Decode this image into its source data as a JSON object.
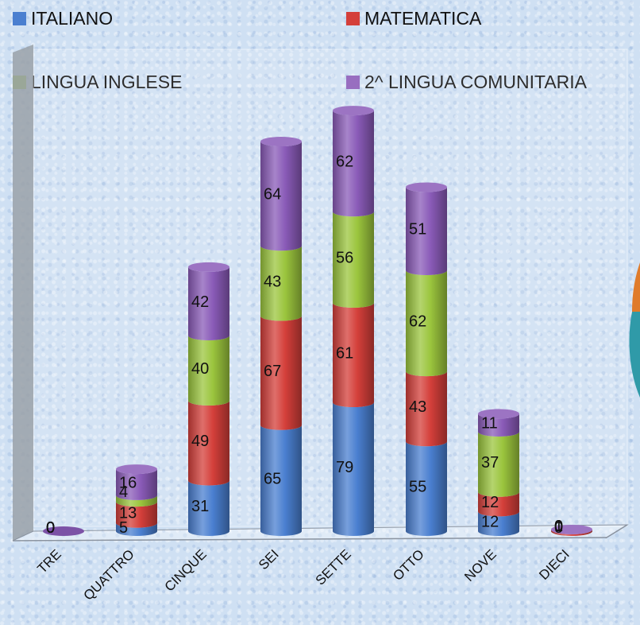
{
  "chart_data": {
    "type": "bar",
    "stacked": true,
    "style": "3d-cylinder",
    "categories": [
      "TRE",
      "QUATTRO",
      "CINQUE",
      "SEI",
      "SETTE",
      "OTTO",
      "NOVE",
      "DIECI"
    ],
    "series": [
      {
        "name": "ITALIANO",
        "color": "#4a7fd0",
        "values": [
          0,
          5,
          31,
          65,
          79,
          55,
          12,
          0
        ]
      },
      {
        "name": "MATEMATICA",
        "color": "#d43f3a",
        "values": [
          0,
          13,
          49,
          67,
          61,
          43,
          12,
          1
        ]
      },
      {
        "name": "LINGUA INGLESE",
        "color": "#9bc53d",
        "values": [
          0,
          4,
          40,
          43,
          56,
          62,
          37,
          0
        ]
      },
      {
        "name": "2^ LINGUA COMUNITARIA",
        "color": "#8a5bb8",
        "values": [
          0,
          16,
          42,
          64,
          62,
          51,
          11,
          0
        ]
      }
    ],
    "legend": "top",
    "grid": false
  }
}
